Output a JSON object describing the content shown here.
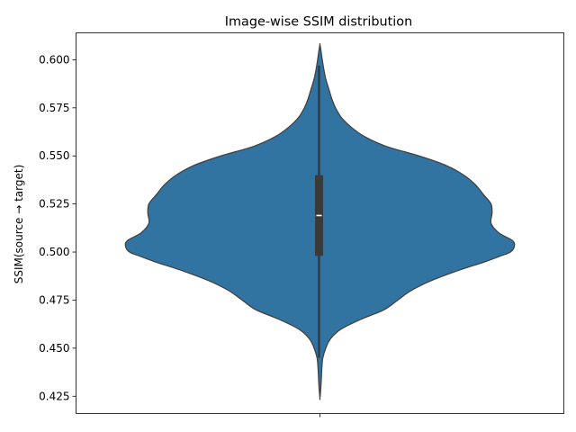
{
  "chart_data": {
    "type": "violin",
    "title": "Image-wise SSIM distribution",
    "xlabel": "",
    "ylabel": "SSIM(source → target)",
    "ylim": [
      0.416,
      0.614
    ],
    "yticks": [
      0.425,
      0.45,
      0.475,
      0.5,
      0.525,
      0.55,
      0.575,
      0.6
    ],
    "ytick_labels": [
      "0.425",
      "0.450",
      "0.475",
      "0.500",
      "0.525",
      "0.550",
      "0.575",
      "0.600"
    ],
    "grid": false,
    "legend": "none",
    "violin_color": "#3274a1",
    "box_color": "#3a3a3a",
    "median_color": "#ffffff",
    "density_profile": [
      [
        0.424,
        0.0
      ],
      [
        0.43,
        0.005
      ],
      [
        0.44,
        0.01
      ],
      [
        0.445,
        0.015
      ],
      [
        0.45,
        0.03
      ],
      [
        0.455,
        0.055
      ],
      [
        0.46,
        0.11
      ],
      [
        0.465,
        0.21
      ],
      [
        0.47,
        0.33
      ],
      [
        0.475,
        0.4
      ],
      [
        0.48,
        0.47
      ],
      [
        0.485,
        0.57
      ],
      [
        0.49,
        0.7
      ],
      [
        0.495,
        0.85
      ],
      [
        0.498,
        0.93
      ],
      [
        0.5,
        0.98
      ],
      [
        0.503,
        1.0
      ],
      [
        0.506,
        0.99
      ],
      [
        0.51,
        0.92
      ],
      [
        0.515,
        0.88
      ],
      [
        0.52,
        0.885
      ],
      [
        0.525,
        0.88
      ],
      [
        0.53,
        0.84
      ],
      [
        0.535,
        0.8
      ],
      [
        0.54,
        0.74
      ],
      [
        0.545,
        0.65
      ],
      [
        0.55,
        0.51
      ],
      [
        0.555,
        0.34
      ],
      [
        0.56,
        0.23
      ],
      [
        0.565,
        0.16
      ],
      [
        0.57,
        0.11
      ],
      [
        0.575,
        0.08
      ],
      [
        0.58,
        0.06
      ],
      [
        0.585,
        0.045
      ],
      [
        0.59,
        0.03
      ],
      [
        0.595,
        0.02
      ],
      [
        0.6,
        0.012
      ],
      [
        0.605,
        0.005
      ],
      [
        0.608,
        0.0
      ]
    ],
    "box": {
      "q1": 0.498,
      "median": 0.519,
      "q3": 0.54,
      "whisker_low": 0.445,
      "whisker_high": 0.597
    }
  }
}
